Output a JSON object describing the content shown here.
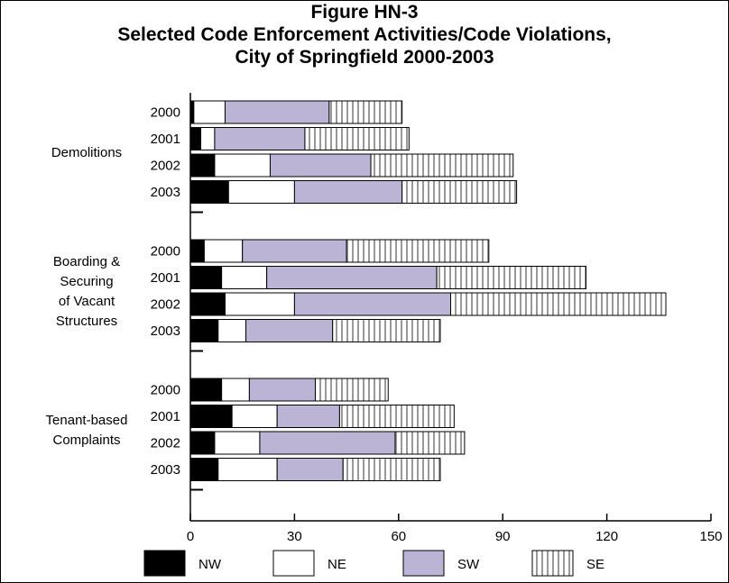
{
  "chart_data": {
    "type": "bar",
    "orientation": "horizontal",
    "stacked": true,
    "title": [
      "Figure HN-3",
      "Selected Code Enforcement Activities/Code Violations,",
      "City of Springfield 2000-2003"
    ],
    "groups": [
      {
        "name": [
          "Demolitions"
        ],
        "years": [
          "2000",
          "2001",
          "2002",
          "2003"
        ]
      },
      {
        "name": [
          "Boarding &",
          "Securing",
          "of Vacant",
          "Structures"
        ],
        "years": [
          "2000",
          "2001",
          "2002",
          "2003"
        ]
      },
      {
        "name": [
          "Tenant-based",
          "Complaints"
        ],
        "years": [
          "2000",
          "2001",
          "2002",
          "2003"
        ]
      }
    ],
    "series": [
      {
        "name": "NW",
        "color": "#000000",
        "pattern": "solid",
        "values": [
          [
            1,
            3,
            7,
            11
          ],
          [
            4,
            9,
            10,
            8
          ],
          [
            9,
            12,
            7,
            8
          ]
        ]
      },
      {
        "name": "NE",
        "color": "#ffffff",
        "pattern": "solid",
        "values": [
          [
            9,
            4,
            16,
            19
          ],
          [
            11,
            13,
            20,
            8
          ],
          [
            8,
            13,
            13,
            17
          ]
        ]
      },
      {
        "name": "SW",
        "color": "#bcb4d4",
        "pattern": "solid",
        "values": [
          [
            30,
            26,
            29,
            31
          ],
          [
            30,
            49,
            45,
            25
          ],
          [
            19,
            18,
            39,
            19
          ]
        ]
      },
      {
        "name": "SE",
        "color": "#ffffff",
        "pattern": "vertical-stripes",
        "values": [
          [
            21,
            30,
            41,
            33
          ],
          [
            41,
            43,
            62,
            31
          ],
          [
            21,
            33,
            20,
            28
          ]
        ]
      }
    ],
    "xlim": [
      0,
      150
    ],
    "xticks": [
      "0",
      "30",
      "60",
      "90",
      "120",
      "150"
    ],
    "grid": false,
    "legend_position": "bottom"
  }
}
